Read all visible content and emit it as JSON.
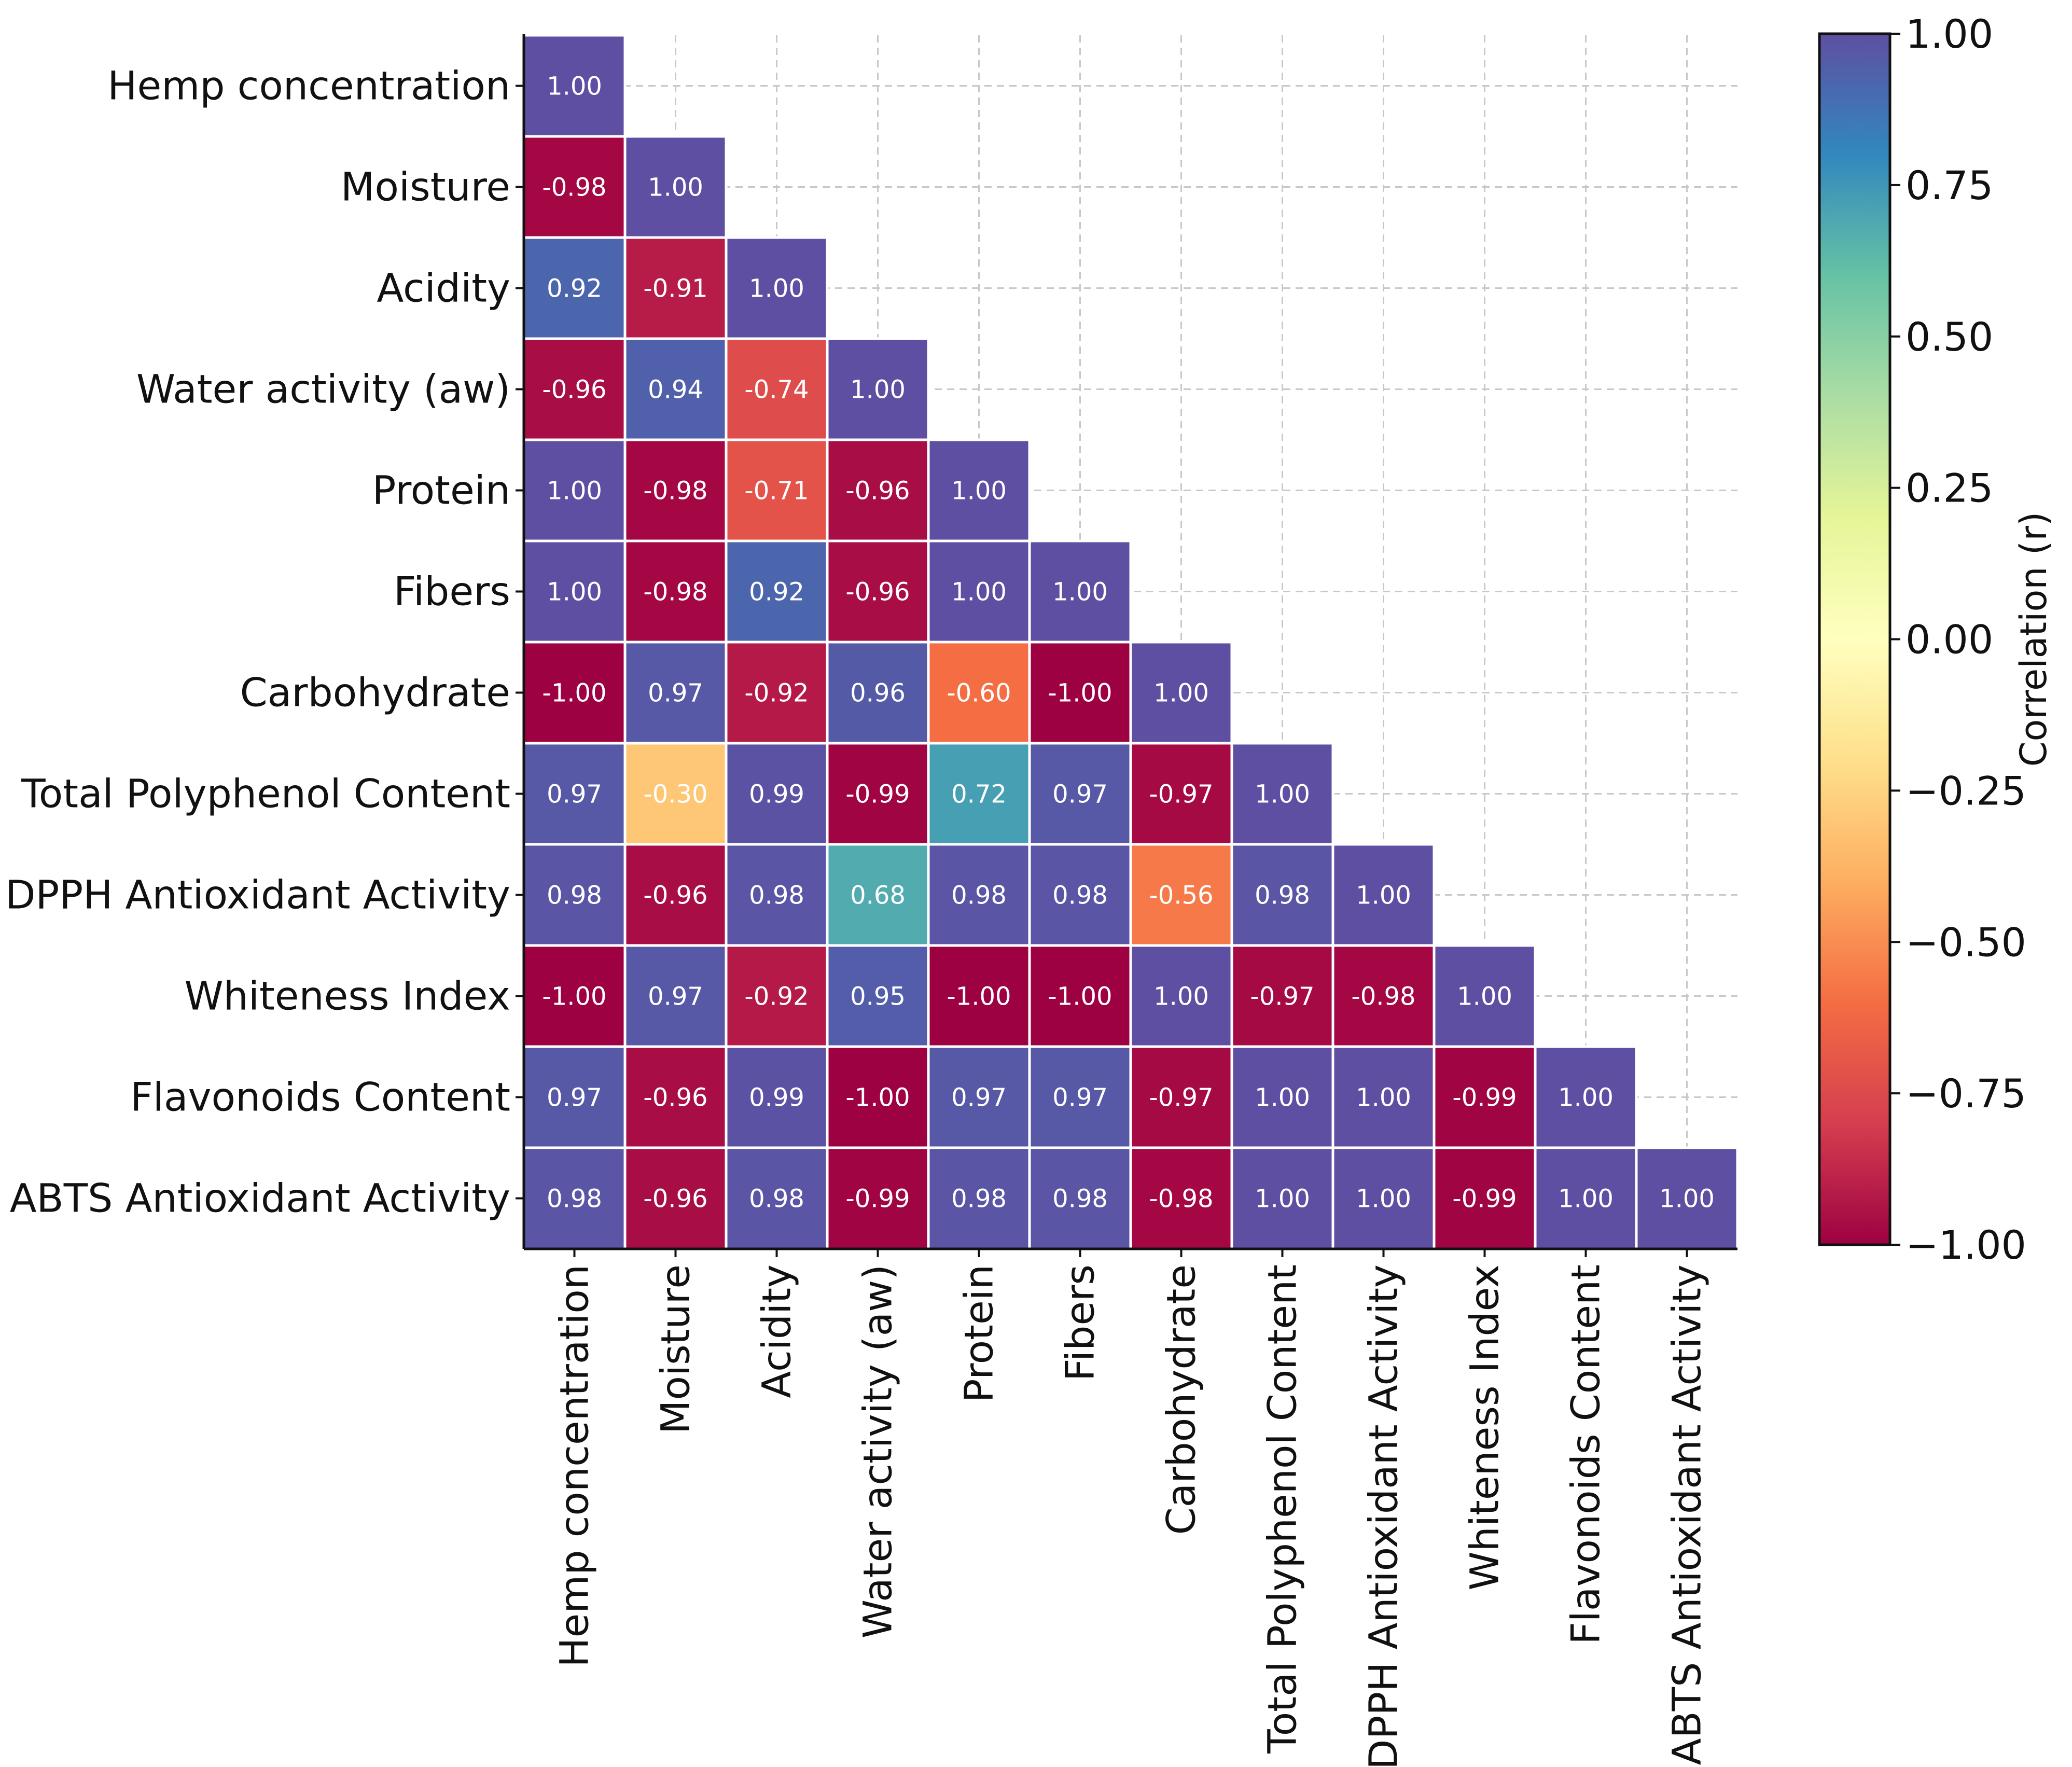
{
  "chart_data": {
    "type": "heatmap",
    "title": "",
    "variables": [
      "Hemp concentration",
      "Moisture",
      "Acidity",
      "Water activity (aw)",
      "Protein",
      "Fibers",
      "Carbohydrate",
      "Total Polyphenol Content",
      "DPPH Antioxidant Activity",
      "Whiteness Index",
      "Flavonoids Content",
      "ABTS Antioxidant Activity"
    ],
    "matrix_lower": [
      [
        1.0
      ],
      [
        -0.98,
        1.0
      ],
      [
        0.92,
        -0.91,
        1.0
      ],
      [
        -0.96,
        0.94,
        -0.74,
        1.0
      ],
      [
        1.0,
        -0.98,
        -0.71,
        -0.96,
        1.0
      ],
      [
        1.0,
        -0.98,
        0.92,
        -0.96,
        1.0,
        1.0
      ],
      [
        -1.0,
        0.97,
        -0.92,
        0.96,
        -0.6,
        -1.0,
        1.0
      ],
      [
        0.97,
        -0.3,
        0.99,
        -0.99,
        0.72,
        0.97,
        -0.97,
        1.0
      ],
      [
        0.98,
        -0.96,
        0.98,
        0.68,
        0.98,
        0.98,
        -0.56,
        0.98,
        1.0
      ],
      [
        -1.0,
        0.97,
        -0.92,
        0.95,
        -1.0,
        -1.0,
        1.0,
        -0.97,
        -0.98,
        1.0
      ],
      [
        0.97,
        -0.96,
        0.99,
        -1.0,
        0.97,
        0.97,
        -0.97,
        1.0,
        1.0,
        -0.99,
        1.0
      ],
      [
        0.98,
        -0.96,
        0.98,
        -0.99,
        0.98,
        0.98,
        -0.98,
        1.0,
        1.0,
        -0.99,
        1.0,
        1.0
      ]
    ],
    "colormap": "Spectral",
    "vmin": -1.0,
    "vmax": 1.0,
    "colorbar": {
      "label": "Correlation (r)",
      "ticks": [
        "1.00",
        "0.75",
        "0.50",
        "0.25",
        "0.00",
        "−0.25",
        "−0.50",
        "−0.75",
        "−1.00"
      ],
      "tick_values": [
        1.0,
        0.75,
        0.5,
        0.25,
        0.0,
        -0.25,
        -0.5,
        -0.75,
        -1.0
      ]
    },
    "grid": true
  }
}
